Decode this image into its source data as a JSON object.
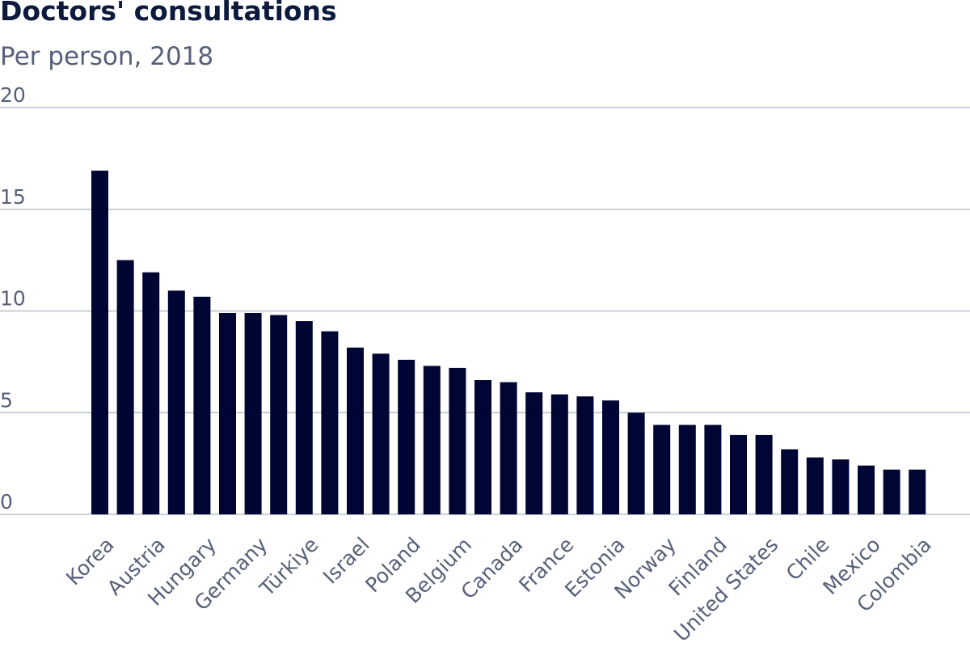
{
  "chart_data": {
    "type": "bar",
    "title": "Doctors' consultations",
    "subtitle": "Per person, 2018",
    "xlabel": "",
    "ylabel": "",
    "ylim": [
      0,
      20
    ],
    "yticks": [
      0,
      5,
      10,
      15,
      20
    ],
    "grid": true,
    "legend": "none",
    "bar_color": "#000633",
    "grid_color": "#b7c0c8",
    "label_color": "#586079",
    "categories": [
      "Korea",
      "",
      "Austria",
      "",
      "Hungary",
      "",
      "Germany",
      "",
      "Türkiye",
      "",
      "Israel",
      "",
      "Poland",
      "",
      "Belgium",
      "",
      "Canada",
      "",
      "France",
      "",
      "Estonia",
      "",
      "Norway",
      "",
      "Finland",
      "",
      "United States",
      "",
      "Chile",
      "",
      "Mexico",
      "",
      "Colombia"
    ],
    "values": [
      16.9,
      12.5,
      11.9,
      11.0,
      10.7,
      9.9,
      9.9,
      9.8,
      9.5,
      9.0,
      8.2,
      7.9,
      7.6,
      7.3,
      7.2,
      6.6,
      6.5,
      6.0,
      5.9,
      5.8,
      5.6,
      5.0,
      4.4,
      4.4,
      4.4,
      3.9,
      3.9,
      3.2,
      2.8,
      2.7,
      2.4,
      2.2,
      2.2
    ]
  }
}
